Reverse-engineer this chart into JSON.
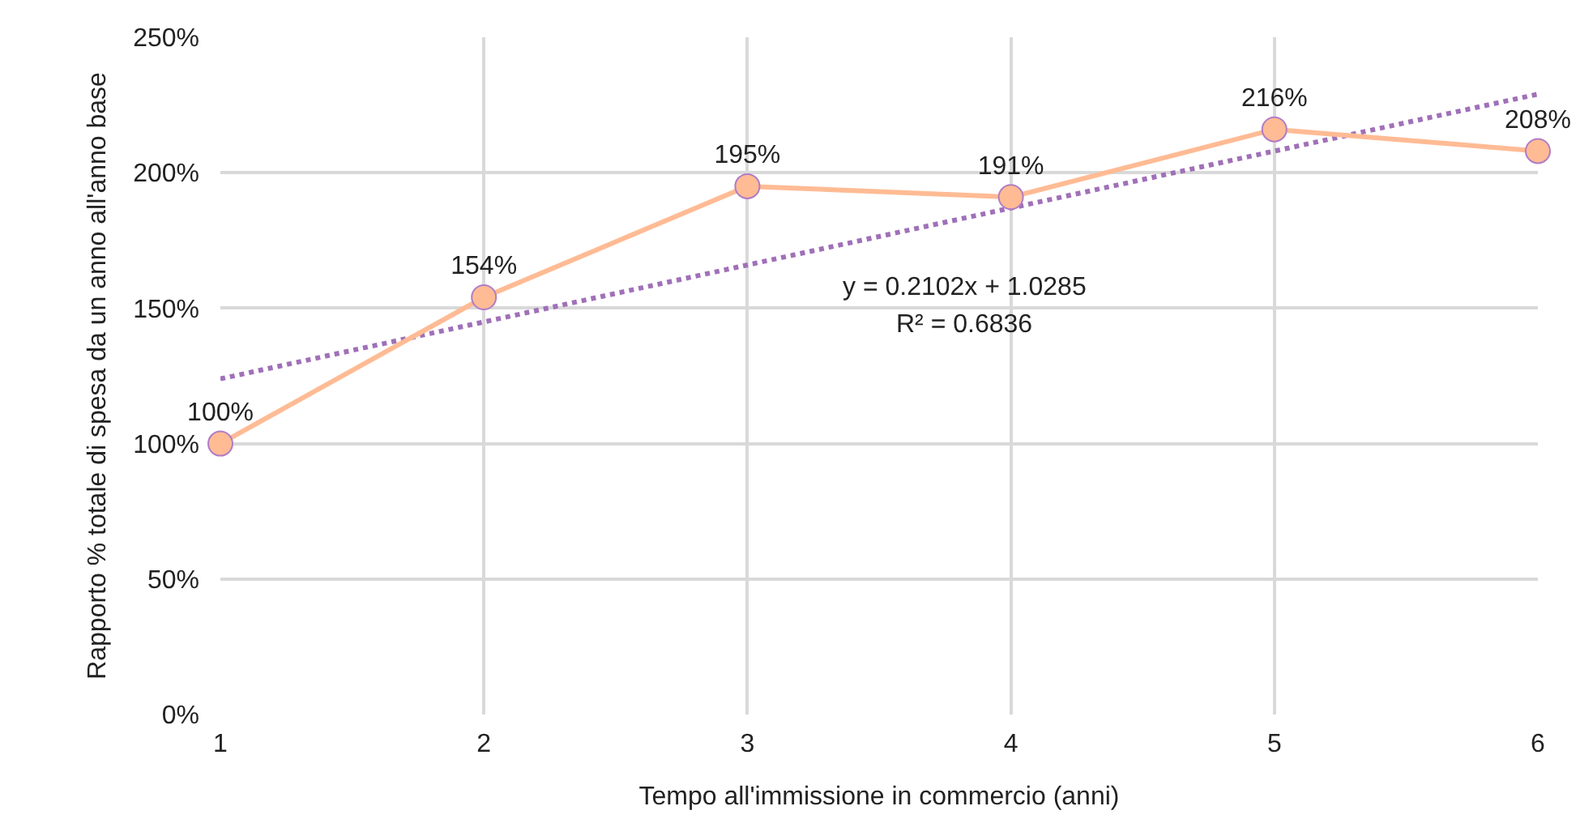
{
  "chart_data": {
    "type": "line",
    "xlabel": "Tempo all'immissione in commercio (anni)",
    "ylabel": "Rapporto % totale di spesa da un anno all'anno base",
    "x": [
      1,
      2,
      3,
      4,
      5,
      6
    ],
    "series": [
      {
        "color": "#ffbb94",
        "values": [
          100,
          154,
          195,
          191,
          216,
          208
        ],
        "value_labels": [
          "100%",
          "154%",
          "195%",
          "191%",
          "216%",
          "208%"
        ],
        "marker": "circle",
        "line_style": "solid"
      },
      {
        "type": "line",
        "color": "#a070b8",
        "x": [
          1,
          6
        ],
        "values": [
          123.9,
          229.0
        ],
        "marker": "none",
        "line_style": "dotted"
      }
    ],
    "annotations": [
      "y = 0.2102x + 1.0285",
      "R² = 0.6836"
    ],
    "xlim": [
      1,
      6
    ],
    "xticks": [
      1,
      2,
      3,
      4,
      5,
      6
    ],
    "ylim": [
      0,
      250
    ],
    "yticks": [
      {
        "value": 0,
        "label": "0%"
      },
      {
        "value": 50,
        "label": "50%"
      },
      {
        "value": 100,
        "label": "100%"
      },
      {
        "value": 150,
        "label": "150%"
      },
      {
        "value": 200,
        "label": "200%"
      },
      {
        "value": 250,
        "label": "250%"
      }
    ],
    "grid": true
  }
}
